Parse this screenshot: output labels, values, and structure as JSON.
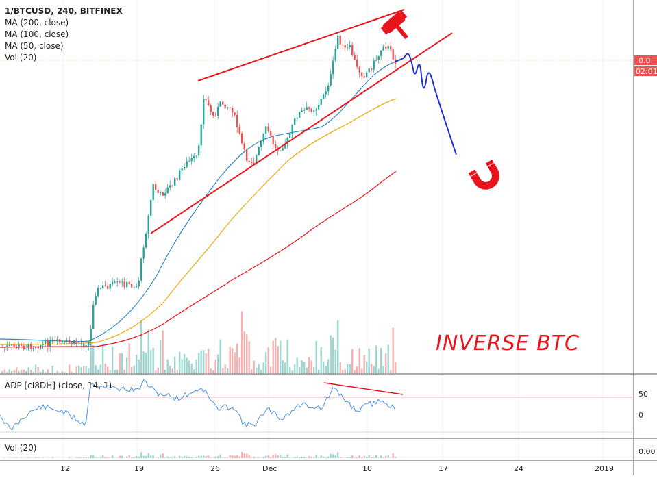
{
  "header": {
    "symbol_line": "1/BTCUSD, 240, BITFINEX",
    "ma200": "MA (200, close)",
    "ma100": "MA (100, close)",
    "ma50": "MA (50, close)",
    "vol": "Vol (20)"
  },
  "annotation_text": "INVERSE BTC",
  "price_badges": {
    "price": "0.0",
    "countdown": "02:01:"
  },
  "adp_label": "ADP [cI8DH] (close, 14, 1)",
  "adp_ticks": [
    "50",
    "0"
  ],
  "vol_label": "Vol (20)",
  "vol_tick": "0.00",
  "x_ticks": [
    "12",
    "19",
    "26",
    "Dec",
    "10",
    "17",
    "24",
    "2019"
  ],
  "colors": {
    "up": "#26a69a",
    "down": "#ef5350",
    "ma50": "#2e86c1",
    "ma100": "#f0a500",
    "ma200": "#e8141b",
    "drawing": "#e8141b",
    "projection": "#1a2fd4",
    "adp": "#4a90e2"
  },
  "icons": [
    "gavel-icon",
    "magnet-icon"
  ],
  "chart_data": [
    {
      "type": "candlestick",
      "title": "1/BTCUSD, 240, BITFINEX",
      "x": [
        "12",
        "19",
        "26",
        "Dec",
        "10",
        "17",
        "24",
        "2019"
      ],
      "series": [
        {
          "name": "MA (200, close)"
        },
        {
          "name": "MA (100, close)"
        },
        {
          "name": "MA (50, close)"
        },
        {
          "name": "Vol (20)"
        }
      ],
      "last_value_label": "0.0",
      "grid": true
    },
    {
      "type": "line",
      "title": "ADP [cI8DH] (close, 14, 1)",
      "yticks": [
        50,
        0
      ],
      "grid": true
    },
    {
      "type": "bar",
      "title": "Vol (20)",
      "yticks": [
        0.0
      ]
    }
  ]
}
